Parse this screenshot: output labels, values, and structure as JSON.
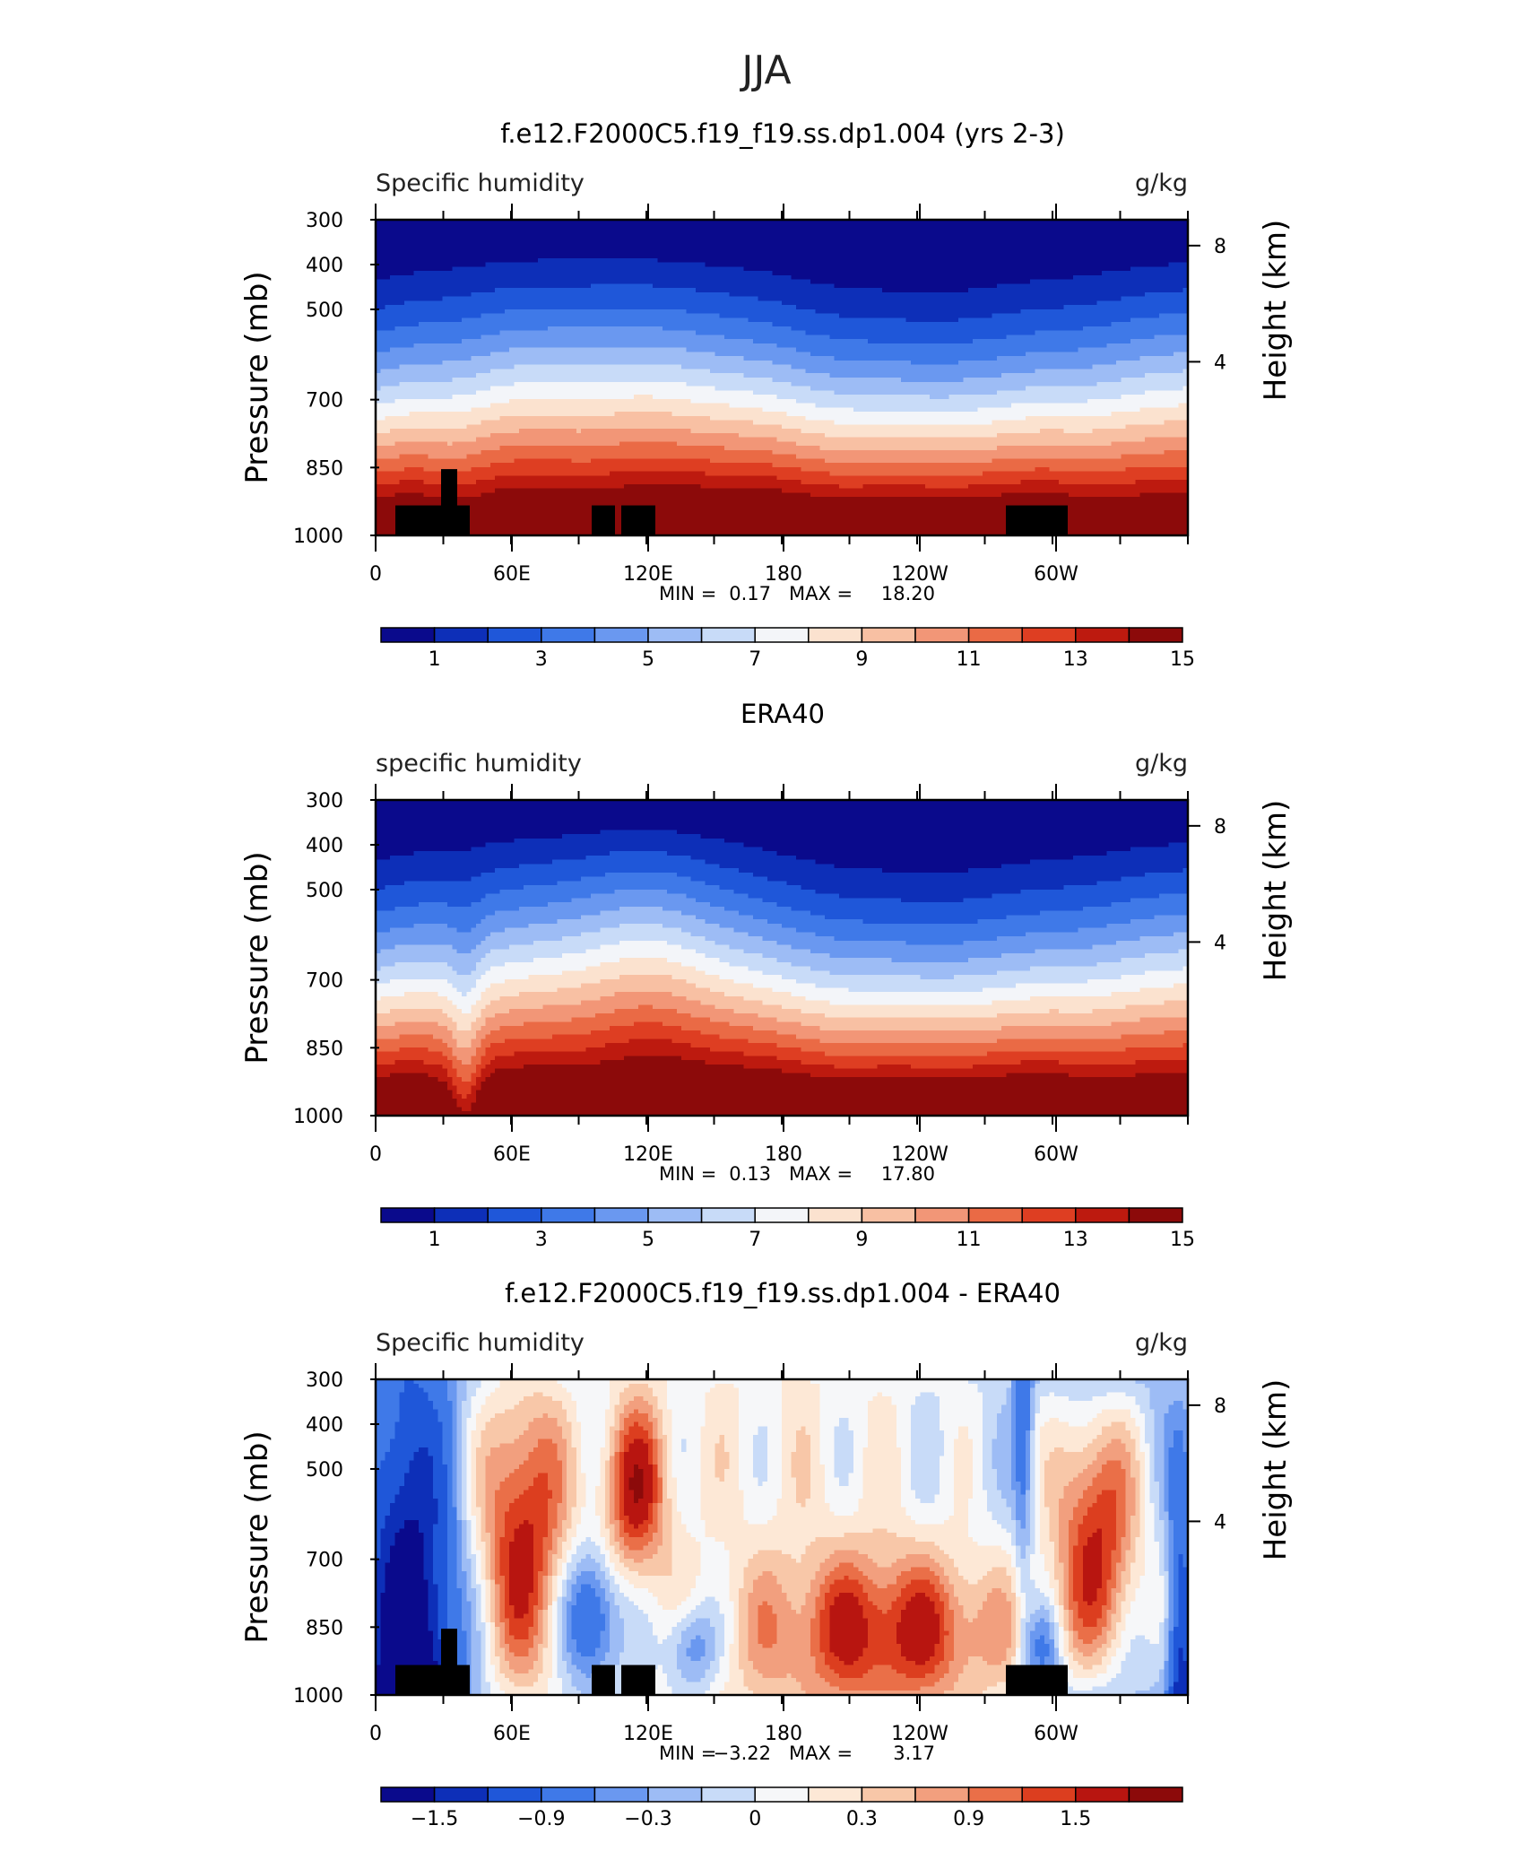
{
  "page_title": "JJA",
  "colors": {
    "model_obs_scale": [
      "#0a0a8c",
      "#0d2fb8",
      "#1f57d9",
      "#3f79e8",
      "#6a98f0",
      "#9dbcf5",
      "#c8dbf8",
      "#f3f5f9",
      "#fbe2cf",
      "#f8c0a3",
      "#f29677",
      "#ea6a45",
      "#de3e22",
      "#bd1a0f",
      "#8c0a0a"
    ],
    "diff_scale": [
      "#0a0a8c",
      "#0d2fb8",
      "#1f57d9",
      "#3f79e8",
      "#6a98f0",
      "#9dbcf5",
      "#c8dbf8",
      "#f6f7f9",
      "#fde8d6",
      "#f8c7a8",
      "#f29f7e",
      "#ea6f48",
      "#dc3e1f",
      "#b81510",
      "#8c0a0a"
    ],
    "topography": "#000000"
  },
  "chart_data": [
    {
      "type": "heatmap",
      "title": "f.e12.F2000C5.f19_f19.ss.dp1.004 (yrs 2-3)",
      "left_label": "Specific humidity",
      "right_label": "g/kg",
      "ylabel": "Pressure (mb)",
      "y2label": "Height (km)",
      "x_ticks": [
        "0",
        "60E",
        "120E",
        "180",
        "120W",
        "60W"
      ],
      "y_ticks": [
        "300",
        "400",
        "500",
        "700",
        "850",
        "1000"
      ],
      "y2_ticks": [
        "8",
        "4"
      ],
      "stats": {
        "min_label": "MIN =",
        "min": "0.17",
        "max_label": "MAX =",
        "max": "18.20"
      },
      "colorbar": {
        "labels": [
          "1",
          "3",
          "5",
          "7",
          "9",
          "11",
          "13",
          "15"
        ],
        "levels": [
          1,
          3,
          5,
          7,
          9,
          11,
          13,
          15
        ]
      },
      "value_range": [
        0.17,
        18.2
      ],
      "topography": true
    },
    {
      "type": "heatmap",
      "title": "ERA40",
      "left_label": "specific humidity",
      "right_label": "g/kg",
      "ylabel": "Pressure (mb)",
      "y2label": "Height (km)",
      "x_ticks": [
        "0",
        "60E",
        "120E",
        "180",
        "120W",
        "60W"
      ],
      "y_ticks": [
        "300",
        "400",
        "500",
        "700",
        "850",
        "1000"
      ],
      "y2_ticks": [
        "8",
        "4"
      ],
      "stats": {
        "min_label": "MIN =",
        "min": "0.13",
        "max_label": "MAX =",
        "max": "17.80"
      },
      "colorbar": {
        "labels": [
          "1",
          "3",
          "5",
          "7",
          "9",
          "11",
          "13",
          "15"
        ],
        "levels": [
          1,
          3,
          5,
          7,
          9,
          11,
          13,
          15
        ]
      },
      "value_range": [
        0.13,
        17.8
      ],
      "topography": false
    },
    {
      "type": "heatmap",
      "title": "f.e12.F2000C5.f19_f19.ss.dp1.004 - ERA40",
      "left_label": "Specific humidity",
      "right_label": "g/kg",
      "ylabel": "Pressure (mb)",
      "y2label": "Height (km)",
      "x_ticks": [
        "0",
        "60E",
        "120E",
        "180",
        "120W",
        "60W"
      ],
      "y_ticks": [
        "300",
        "400",
        "500",
        "700",
        "850",
        "1000"
      ],
      "y2_ticks": [
        "8",
        "4"
      ],
      "stats": {
        "min_label": "MIN =",
        "min": "−3.22",
        "max_label": "MAX =",
        "max": "3.17"
      },
      "colorbar": {
        "labels": [
          "−1.5",
          "−0.9",
          "−0.3",
          "0",
          "0.3",
          "0.9",
          "1.5"
        ],
        "levels": [
          -1.5,
          -0.9,
          -0.3,
          0,
          0.3,
          0.9,
          1.5
        ]
      },
      "value_range": [
        -3.22,
        3.17
      ],
      "topography": true
    }
  ]
}
